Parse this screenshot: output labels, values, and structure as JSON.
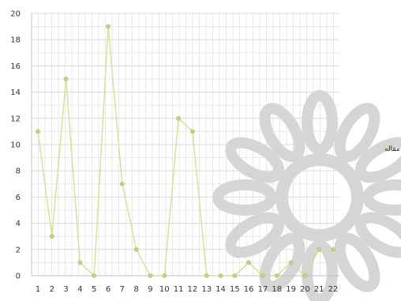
{
  "chart_data": {
    "type": "line",
    "title": "",
    "xlabel": "",
    "ylabel": "",
    "x": [
      1,
      2,
      3,
      4,
      5,
      6,
      7,
      8,
      9,
      10,
      11,
      12,
      13,
      14,
      15,
      16,
      17,
      18,
      19,
      20,
      21,
      22
    ],
    "ylim": [
      0,
      20
    ],
    "yticks": [
      0,
      2,
      4,
      6,
      8,
      10,
      12,
      14,
      16,
      18,
      20
    ],
    "grid": true,
    "legend": "right",
    "series": [
      {
        "name": "تعداد مقاله",
        "values": [
          11,
          3,
          15,
          1,
          0,
          19,
          7,
          2,
          0,
          0,
          12,
          11,
          0,
          0,
          0,
          1,
          0,
          0,
          1,
          0,
          2,
          2
        ]
      }
    ],
    "colors": {
      "line": "#d9dc9a",
      "marker": "#c9cc86",
      "grid": "#d9d9d9",
      "watermark": "#b3b3b3"
    }
  }
}
